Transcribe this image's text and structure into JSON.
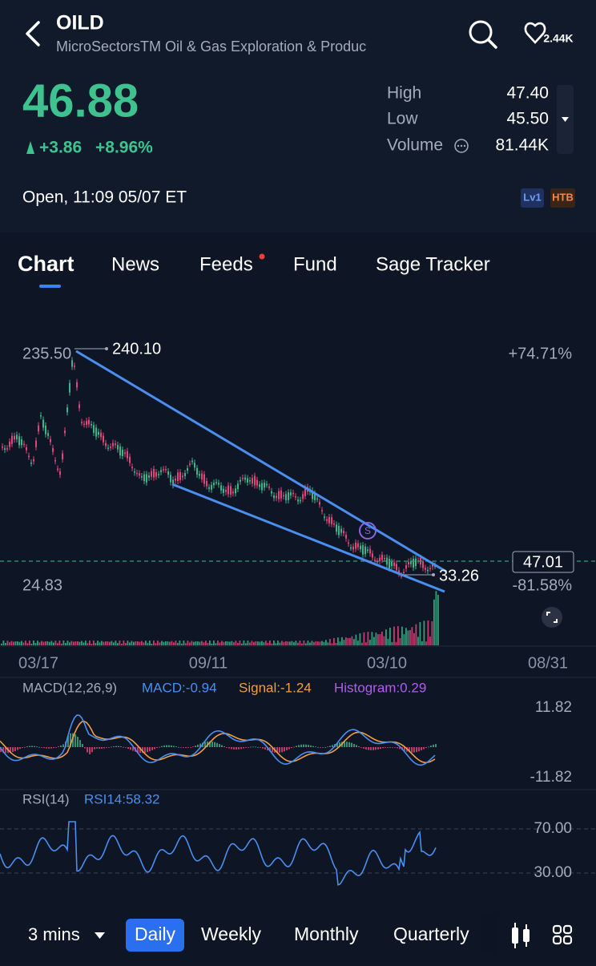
{
  "header": {
    "symbol": "OILD",
    "name": "MicroSectorsTM Oil & Gas Exploration & Produc",
    "watchers": "2.44K"
  },
  "quote": {
    "price": "46.88",
    "change": "+3.86",
    "change_percent": "+8.96%",
    "stats": [
      {
        "label": "High",
        "value": "47.40"
      },
      {
        "label": "Low",
        "value": "45.50"
      },
      {
        "label": "Volume",
        "value": "81.44K"
      }
    ]
  },
  "status": {
    "text": "Open, 11:09 05/07 ET",
    "badges": [
      "Lv1",
      "HTB"
    ]
  },
  "tabs": [
    "Chart",
    "News",
    "Feeds",
    "Fund",
    "Sage Tracker"
  ],
  "chart": {
    "axis_high": "235.50",
    "peak_label": "240.10",
    "high_change": "+74.71%",
    "current_price": "47.01",
    "low_label": "33.26",
    "axis_low": "24.83",
    "low_change": "-81.58%",
    "dates": [
      "03/17",
      "09/11",
      "03/10",
      "08/31"
    ]
  },
  "macd": {
    "title": "MACD(12,26,9)",
    "macd": "MACD:-0.94",
    "signal": "Signal:-1.24",
    "histogram": "Histogram:0.29",
    "max": "11.82",
    "min": "-11.82"
  },
  "rsi": {
    "title": "RSI(14)",
    "value": "RSI14:58.32",
    "upper": "70.00",
    "lower": "30.00"
  },
  "periods": {
    "selector": "3 mins",
    "options": [
      "Daily",
      "Weekly",
      "Monthly",
      "Quarterly"
    ]
  }
}
